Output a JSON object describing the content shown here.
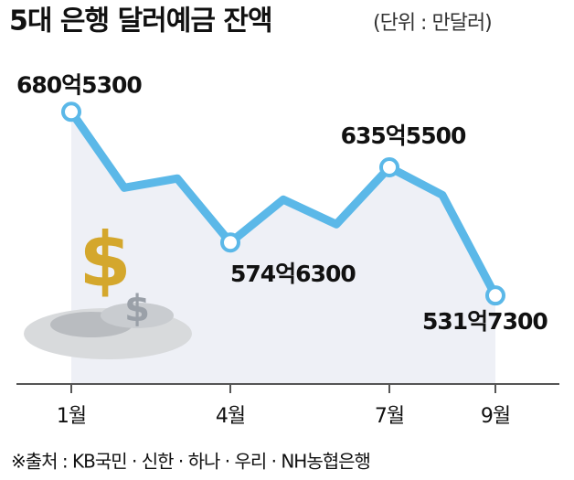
{
  "chart_data": {
    "type": "line",
    "title": "5대 은행 달러예금 잔액",
    "subtitle": "(단위 : 만달러)",
    "categories": [
      "1월",
      null,
      null,
      "4월",
      null,
      null,
      "7월",
      null,
      "9월"
    ],
    "series": [
      {
        "name": "달러예금 잔액",
        "color": "#5bb8e8",
        "values": [
          6805300,
          6190000,
          6265000,
          5746300,
          6094000,
          5894000,
          6355500,
          6131000,
          5317300
        ],
        "value_labels": [
          "680억5300",
          null,
          null,
          "574억6300",
          null,
          null,
          "635억5500",
          null,
          "531억7300"
        ]
      }
    ],
    "ylim": [
      4600000,
      7200000
    ],
    "area_color": "#eef0f6"
  },
  "source": "※출처 : KB국민 · 신한 · 하나 · 우리 · NH농협은행"
}
